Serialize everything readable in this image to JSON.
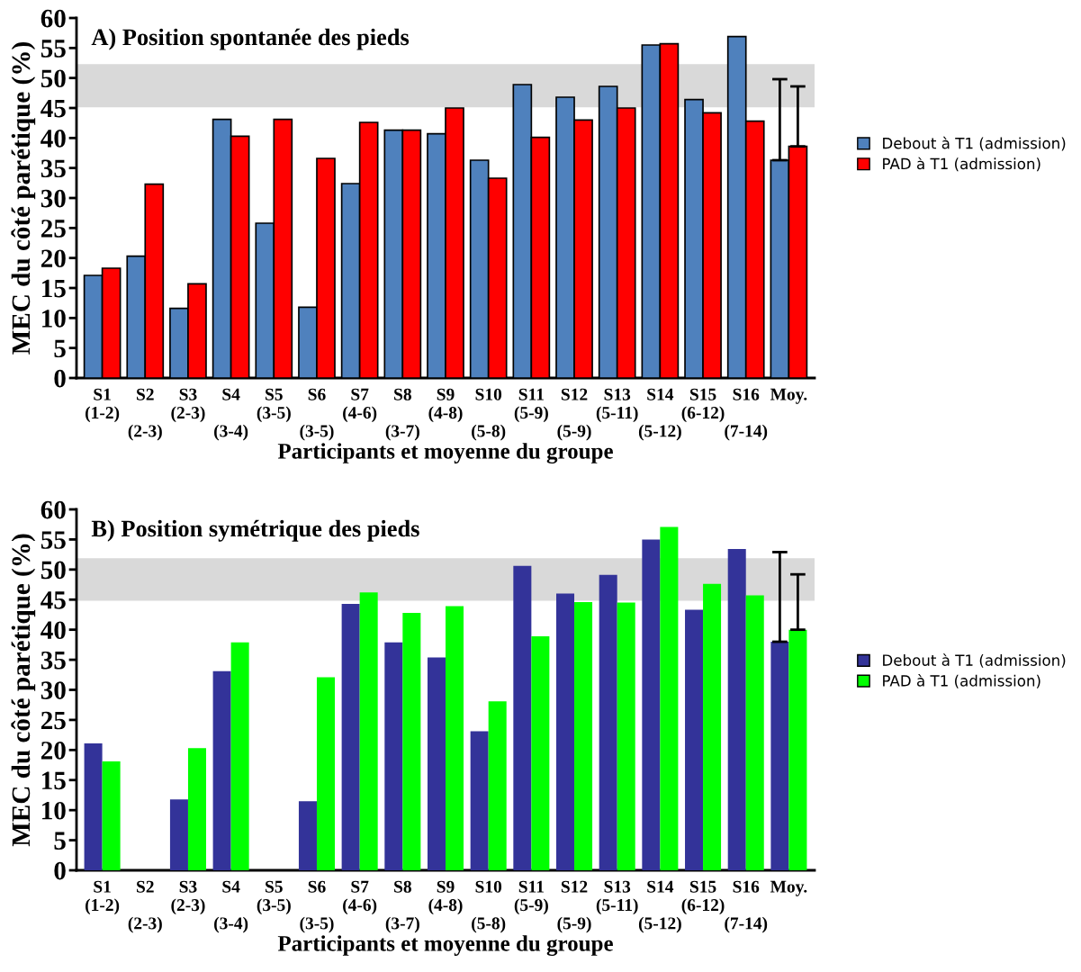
{
  "chart_data": [
    {
      "type": "bar",
      "title": "A) Position spontanée des pieds",
      "xlabel": "Participants et moyenne du groupe",
      "ylabel": "MEC du côté parétique (%)",
      "categories": [
        "S1\n(1-2)",
        "S2\n\n(2-3)",
        "S3\n(2-3)",
        "S4\n\n(3-4)",
        "S5\n(3-5)",
        "S6\n\n(3-5)",
        "S7\n(4-6)",
        "S8\n\n(3-7)",
        "S9\n(4-8)",
        "S10\n\n(5-8)",
        "S11\n(5-9)",
        "S12\n\n(5-9)",
        "S13\n(5-11)",
        "S14\n\n(5-12)",
        "S15\n(6-12)",
        "S16\n\n(7-14)",
        "Moy."
      ],
      "series": [
        {
          "name": "Debout à T1 (admission)",
          "color": "#4f81bd",
          "values": [
            17.1,
            20.3,
            11.6,
            43.1,
            25.8,
            11.8,
            32.4,
            41.3,
            40.7,
            36.3,
            48.9,
            46.8,
            48.6,
            55.5,
            46.4,
            56.9,
            36.3
          ],
          "errors": [
            null,
            null,
            null,
            null,
            null,
            null,
            null,
            null,
            null,
            null,
            null,
            null,
            null,
            null,
            null,
            null,
            [
              36.3,
              49.8
            ]
          ]
        },
        {
          "name": "PAD à T1 (admission)",
          "color": "#ff0000",
          "values": [
            18.3,
            32.3,
            15.7,
            40.3,
            43.1,
            36.6,
            42.6,
            41.3,
            45.0,
            33.3,
            40.1,
            43.0,
            45.0,
            55.7,
            44.2,
            42.8,
            38.6
          ],
          "errors": [
            null,
            null,
            null,
            null,
            null,
            null,
            null,
            null,
            null,
            null,
            null,
            null,
            null,
            null,
            null,
            null,
            [
              38.6,
              48.6
            ]
          ]
        }
      ],
      "ylim": [
        0,
        60
      ],
      "yticks": [
        0,
        5,
        10,
        15,
        20,
        25,
        30,
        35,
        40,
        45,
        50,
        55,
        60
      ],
      "bands": [
        {
          "axis": "y",
          "from": 45.1,
          "to": 52.3,
          "color": "#d9d9d9"
        }
      ],
      "legend": "right",
      "grid": false
    },
    {
      "type": "bar",
      "title": "B) Position symétrique des pieds",
      "xlabel": "Participants et moyenne du groupe",
      "ylabel": "MEC du côté parétique (%)",
      "categories": [
        "S1\n(1-2)",
        "S2\n\n(2-3)",
        "S3\n(2-3)",
        "S4\n\n(3-4)",
        "S5\n(3-5)",
        "S6\n\n(3-5)",
        "S7\n(4-6)",
        "S8\n\n(3-7)",
        "S9\n(4-8)",
        "S10\n\n(5-8)",
        "S11\n(5-9)",
        "S12\n\n(5-9)",
        "S13\n(5-11)",
        "S14\n\n(5-12)",
        "S15\n(6-12)",
        "S16\n\n(7-14)",
        "Moy."
      ],
      "series": [
        {
          "name": "Debout à T1 (admission)",
          "color": "#333399",
          "values": [
            21.1,
            0,
            11.8,
            33.1,
            0,
            11.5,
            44.3,
            37.9,
            35.4,
            23.1,
            50.6,
            46.0,
            49.1,
            55.0,
            43.3,
            53.4,
            38.0
          ],
          "errors": [
            null,
            null,
            null,
            null,
            null,
            null,
            null,
            null,
            null,
            null,
            null,
            null,
            null,
            null,
            null,
            null,
            [
              38.0,
              52.9
            ]
          ]
        },
        {
          "name": "PAD à T1 (admission)",
          "color": "#00ff00",
          "values": [
            18.1,
            0,
            20.3,
            37.9,
            0,
            32.1,
            46.2,
            42.8,
            43.9,
            28.1,
            38.9,
            44.6,
            44.5,
            57.1,
            47.6,
            45.7,
            40.0
          ],
          "errors": [
            null,
            null,
            null,
            null,
            null,
            null,
            null,
            null,
            null,
            null,
            null,
            null,
            null,
            null,
            null,
            null,
            [
              40.0,
              49.2
            ]
          ]
        }
      ],
      "ylim": [
        0,
        60
      ],
      "yticks": [
        0,
        5,
        10,
        15,
        20,
        25,
        30,
        35,
        40,
        45,
        50,
        55,
        60
      ],
      "bands": [
        {
          "axis": "y",
          "from": 44.8,
          "to": 51.9,
          "color": "#d9d9d9"
        }
      ],
      "legend": "right",
      "grid": false
    }
  ]
}
